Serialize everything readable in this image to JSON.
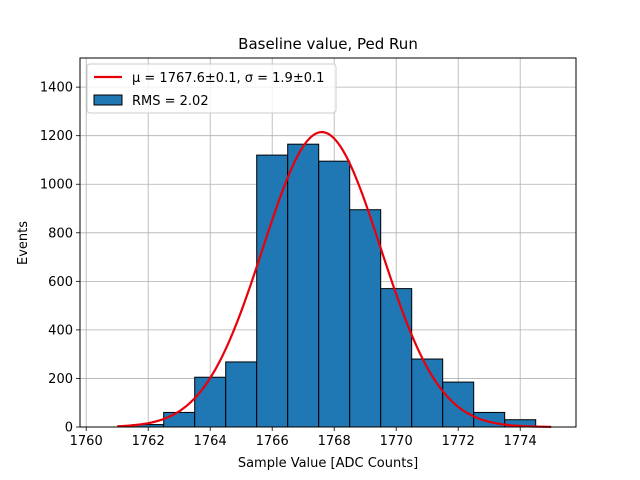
{
  "chart_data": {
    "type": "bar",
    "title": "Baseline value, Ped Run",
    "xlabel": "Sample Value [ADC Counts]",
    "ylabel": "Events",
    "xlim": [
      1759.8,
      1775.8
    ],
    "ylim": [
      0,
      1520
    ],
    "xticks": [
      1760,
      1762,
      1764,
      1766,
      1768,
      1770,
      1772,
      1774
    ],
    "yticks": [
      0,
      200,
      400,
      600,
      800,
      1000,
      1200,
      1400
    ],
    "grid": true,
    "legend_position": "top-left",
    "histogram": {
      "name": "RMS = 2.02",
      "color": "#1f77b4",
      "edgecolor": "#000000",
      "bin_edges": [
        1761.5,
        1762.5,
        1763.5,
        1764.5,
        1765.5,
        1766.5,
        1767.5,
        1768.5,
        1769.5,
        1770.5,
        1771.5,
        1772.5,
        1773.5,
        1774.5
      ],
      "counts": [
        10,
        60,
        205,
        268,
        1120,
        1165,
        1095,
        895,
        570,
        280,
        185,
        60,
        30
      ]
    },
    "fit": {
      "name": "μ = 1767.6±0.1, σ = 1.9±0.1",
      "mu_label": "μ = 1767.6±0.1",
      "sigma_label": "σ = 1.9±0.1",
      "color": "#e8000b",
      "mu": 1767.6,
      "sigma": 1.9,
      "amplitude": 1215,
      "x_range": [
        1761,
        1775
      ]
    }
  }
}
